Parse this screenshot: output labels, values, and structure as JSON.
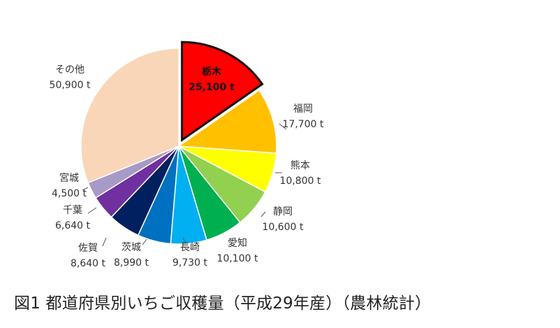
{
  "caption": "図1 都道府県別いちご収穫量（平成29年産）（農林統計）",
  "chart_data": {
    "type": "pie",
    "unit": "t",
    "highlight_color": "#111111",
    "slices": [
      {
        "name": "栃木",
        "value": 25100,
        "value_label": "25,100 t",
        "color": "#ff0000",
        "highlight": true
      },
      {
        "name": "福岡",
        "value": 17700,
        "value_label": "17,700 t",
        "color": "#ffc000"
      },
      {
        "name": "熊本",
        "value": 10800,
        "value_label": "10,800 t",
        "color": "#ffff00"
      },
      {
        "name": "静岡",
        "value": 10600,
        "value_label": "10,600 t",
        "color": "#92d050"
      },
      {
        "name": "愛知",
        "value": 10100,
        "value_label": "10,100 t",
        "color": "#00b050"
      },
      {
        "name": "長崎",
        "value": 9730,
        "value_label": "9,730 t",
        "color": "#00b0f0"
      },
      {
        "name": "茨城",
        "value": 8990,
        "value_label": "8,990 t",
        "color": "#0070c0"
      },
      {
        "name": "佐賀",
        "value": 8640,
        "value_label": "8,640 t",
        "color": "#002060"
      },
      {
        "name": "千葉",
        "value": 6640,
        "value_label": "6,640 t",
        "color": "#7030a0"
      },
      {
        "name": "宮城",
        "value": 4500,
        "value_label": "4,500 t",
        "color": "#a79ac6"
      },
      {
        "name": "その他",
        "value": 50900,
        "value_label": "50,900 t",
        "color": "#fad6b8"
      }
    ]
  }
}
